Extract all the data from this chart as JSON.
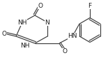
{
  "bg_color": "#ffffff",
  "bond_color": "#3d3d3d",
  "text_color": "#1a1a1a",
  "font_size": 6.5,
  "fig_width": 1.55,
  "fig_height": 0.83,
  "dpi": 100,
  "xlim": [
    0,
    155
  ],
  "ylim": [
    0,
    83
  ]
}
